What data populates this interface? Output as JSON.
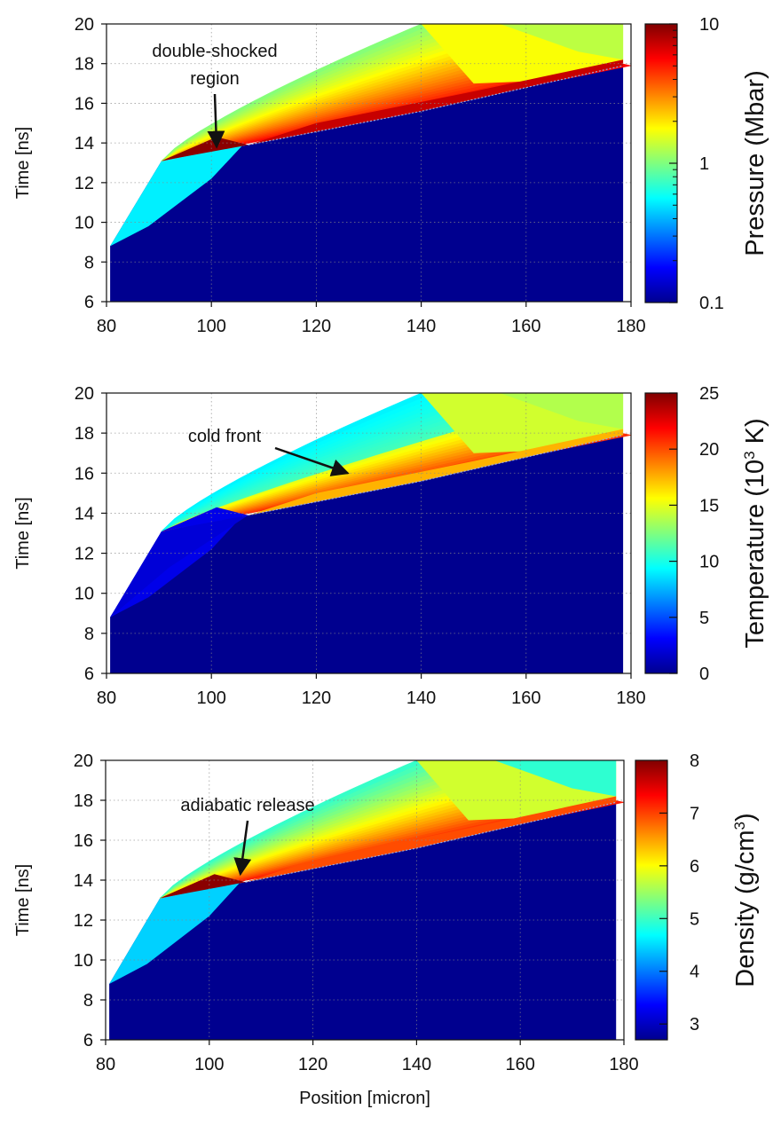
{
  "chart_data": [
    {
      "type": "heatmap",
      "id": "pressure",
      "ylabel": "Time [ns]",
      "xlabel": "",
      "xlim": [
        80,
        180
      ],
      "ylim": [
        6,
        20
      ],
      "xticks": [
        "80",
        "100",
        "120",
        "140",
        "160",
        "180"
      ],
      "yticks": [
        "6",
        "8",
        "10",
        "12",
        "14",
        "16",
        "18",
        "20"
      ],
      "grid": true,
      "colorbar": {
        "label": "Pressure (Mbar)",
        "scale": "log",
        "range": [
          0.1,
          10
        ],
        "ticks": [
          "0.1",
          "1",
          "10"
        ]
      },
      "annotation": {
        "text_lines": [
          "double-shocked",
          "region"
        ],
        "points_to": {
          "position": 101,
          "time": 13.8
        }
      }
    },
    {
      "type": "heatmap",
      "id": "temperature",
      "ylabel": "Time [ns]",
      "xlabel": "",
      "xlim": [
        80,
        180
      ],
      "ylim": [
        6,
        20
      ],
      "xticks": [
        "80",
        "100",
        "120",
        "140",
        "160",
        "180"
      ],
      "yticks": [
        "6",
        "8",
        "10",
        "12",
        "14",
        "16",
        "18",
        "20"
      ],
      "grid": true,
      "colorbar": {
        "label_main": "Temperature (10",
        "label_sup": "3",
        "label_tail": " K)",
        "scale": "linear",
        "range": [
          0,
          25
        ],
        "ticks": [
          "0",
          "5",
          "10",
          "15",
          "20",
          "25"
        ]
      },
      "annotation": {
        "text_lines": [
          "cold front"
        ],
        "points_to": {
          "position": 126,
          "time": 16.0
        }
      }
    },
    {
      "type": "heatmap",
      "id": "density",
      "ylabel": "Time [ns]",
      "xlabel": "Position [micron]",
      "xlim": [
        80,
        180
      ],
      "ylim": [
        6,
        20
      ],
      "xticks": [
        "80",
        "100",
        "120",
        "140",
        "160",
        "180"
      ],
      "yticks": [
        "6",
        "8",
        "10",
        "12",
        "14",
        "16",
        "18",
        "20"
      ],
      "grid": true,
      "colorbar": {
        "label_main": "Density (g/cm",
        "label_sup": "3",
        "label_tail": ")",
        "scale": "linear",
        "range": [
          2.7,
          8
        ],
        "ticks": [
          "3",
          "4",
          "5",
          "6",
          "7",
          "8"
        ]
      },
      "annotation": {
        "text_lines": [
          "adiabatic release"
        ],
        "points_to": {
          "position": 106,
          "time": 14.3
        }
      }
    }
  ]
}
